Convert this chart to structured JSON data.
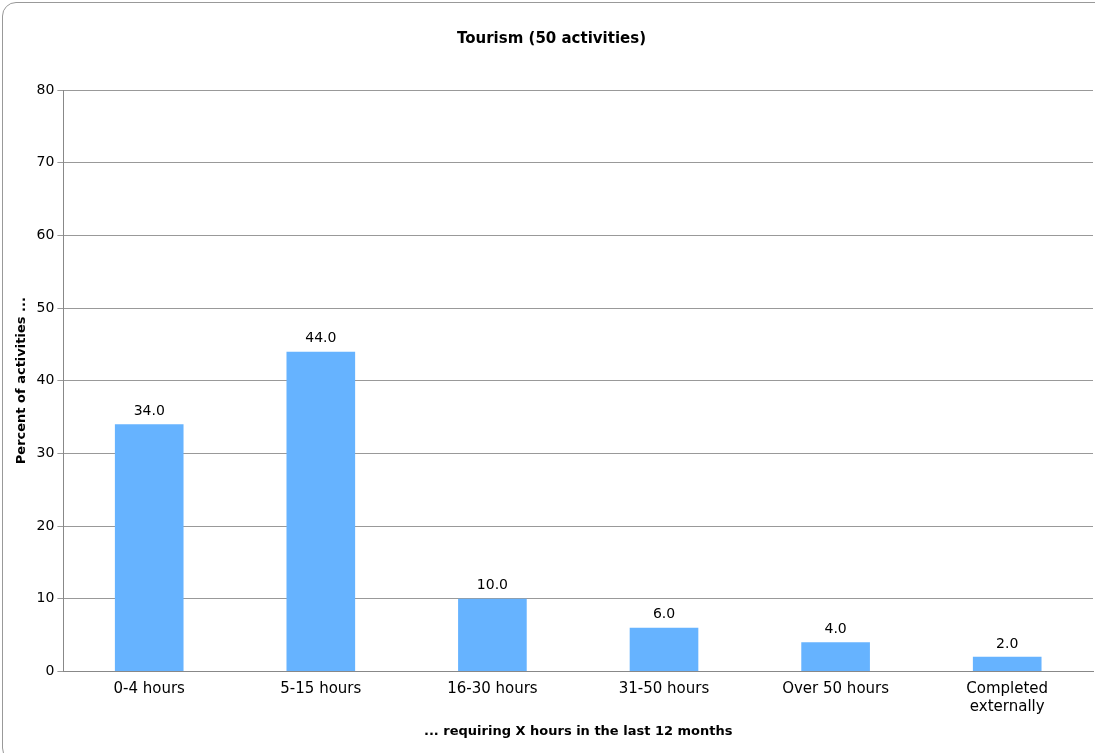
{
  "chart_data": {
    "type": "bar",
    "title": "Tourism (50 activities)",
    "xlabel": "... requiring X hours in the last 12 months",
    "ylabel": "Percent of activities ...",
    "categories": [
      "0-4 hours",
      "5-15 hours",
      "16-30 hours",
      "31-50 hours",
      "Over 50 hours",
      "Completed externally"
    ],
    "values": [
      34,
      44,
      10,
      6,
      4,
      2
    ],
    "value_labels": [
      "34.0",
      "44.0",
      "10.0",
      "6.0",
      "4.0",
      "2.0"
    ],
    "color": "#66b3ff",
    "ylim": [
      0,
      80
    ],
    "yticks": [
      0,
      10,
      20,
      30,
      40,
      50,
      60,
      70,
      80
    ],
    "grid": "y",
    "legend": false
  }
}
